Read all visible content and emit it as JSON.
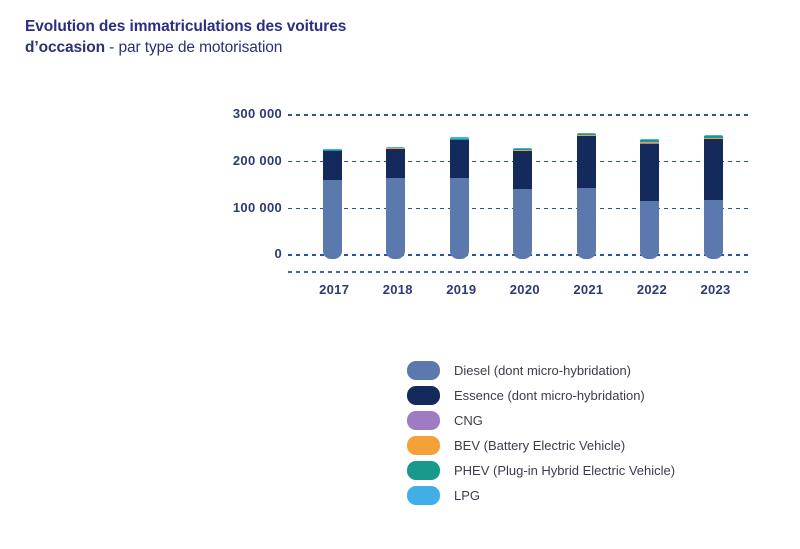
{
  "title": {
    "line1_bold": "Evolution des immatriculations des voitures",
    "line2_bold": "d’occasion",
    "line2_regular": " - par type de motorisation"
  },
  "colors": {
    "title_navy": "#2b2f7e",
    "axis_navy": "#2c3a75",
    "gridline": "#2d5292",
    "legend_text": "#3c3c4e"
  },
  "chart_data": {
    "type": "bar",
    "stacked": true,
    "title": "Evolution des immatriculations des voitures d’occasion - par type de motorisation",
    "xlabel": "",
    "ylabel": "",
    "categories": [
      "2017",
      "2018",
      "2019",
      "2020",
      "2021",
      "2022",
      "2023"
    ],
    "series": [
      {
        "name": "Diesel (dont micro-hybridation)",
        "color": "#5b79ac",
        "values": [
          160000,
          163000,
          164000,
          139000,
          141000,
          114000,
          117000
        ]
      },
      {
        "name": "Essence (dont micro-hybridation)",
        "color": "#142a5c",
        "values": [
          61000,
          63000,
          80000,
          82000,
          111000,
          123000,
          129000
        ]
      },
      {
        "name": "CNG",
        "color": "#9d7cc4",
        "values": [
          300,
          300,
          400,
          400,
          500,
          500,
          600
        ]
      },
      {
        "name": "BEV (Battery Electric Vehicle)",
        "color": "#f4a13a",
        "values": [
          500,
          600,
          900,
          1200,
          1800,
          2600,
          3000
        ]
      },
      {
        "name": "PHEV (Plug-in Hybrid Electric Vehicle)",
        "color": "#17998c",
        "values": [
          1800,
          1200,
          2200,
          2500,
          3200,
          3500,
          3500
        ]
      },
      {
        "name": "LPG",
        "color": "#41afe6",
        "values": [
          2800,
          1400,
          2800,
          2500,
          2800,
          2500,
          2600
        ]
      }
    ],
    "yticks": [
      {
        "label": "300 000",
        "value": 300000
      },
      {
        "label": "200 000",
        "value": 200000
      },
      {
        "label": "100 000",
        "value": 100000
      },
      {
        "label": "0",
        "value": 0
      }
    ],
    "ylim": [
      0,
      300000
    ],
    "grid": "horizontal-dashed",
    "legend_position": "bottom-right"
  }
}
